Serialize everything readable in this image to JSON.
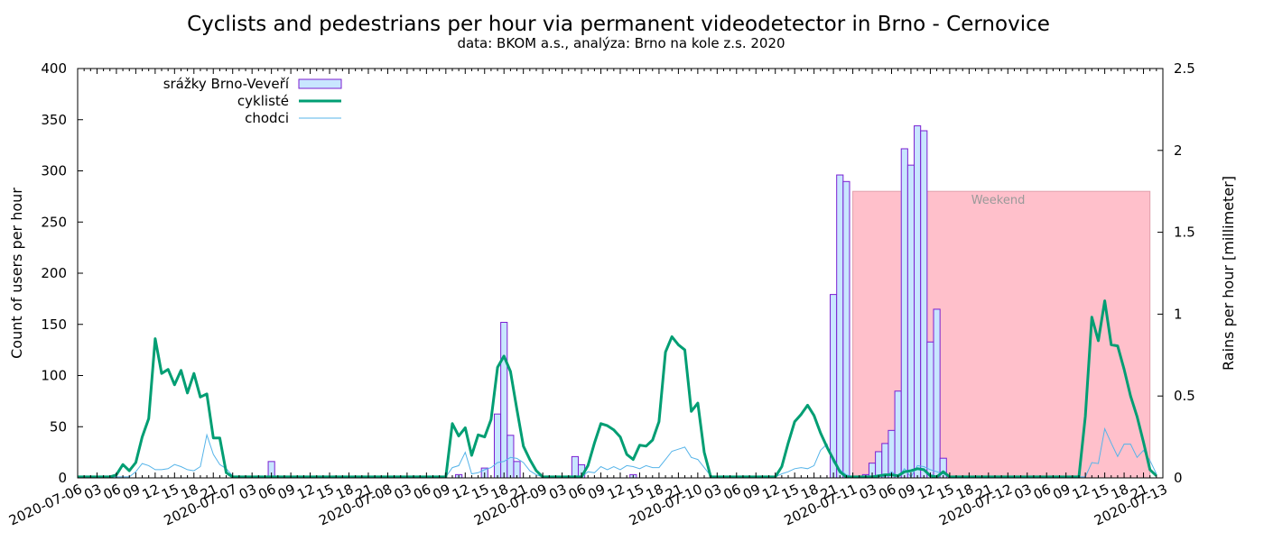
{
  "chart_data": {
    "type": "bar+line",
    "title": "Cyclists and pedestrians per hour via permanent videodetector in Brno - Cernovice",
    "subtitle": "data: BKOM a.s., analýza: Brno na kole z.s. 2020",
    "ylabel": "Count of users per hour",
    "y2label": "Rains per hour [millimeter]",
    "ylim": [
      0,
      400
    ],
    "y2lim": [
      0,
      2.5
    ],
    "yticks": [
      "0",
      "50",
      "100",
      "150",
      "200",
      "250",
      "300",
      "350",
      "400"
    ],
    "y2ticks": [
      "0",
      "0.5",
      "1",
      "1.5",
      "2",
      "2.5"
    ],
    "xlim_hours": [
      0,
      168
    ],
    "date_labels": [
      "2020-07-06",
      "2020-07-07",
      "2020-07-08",
      "2020-07-09",
      "2020-07-10",
      "2020-07-11",
      "2020-07-12",
      "2020-07-13"
    ],
    "hour_labels": [
      "03",
      "06",
      "09",
      "12",
      "15",
      "18",
      "21"
    ],
    "legend": {
      "position": "top-left"
    },
    "weekend": {
      "label": "Weekend",
      "start_hour": 120,
      "end_hour": 166,
      "level": 280,
      "color": "#ffc0cb"
    },
    "series": [
      {
        "name": "srážky Brno-Veveří",
        "axis": "y2",
        "kind": "bar",
        "color": "#c8e6ff",
        "edge": "#7b1fd1",
        "points": [
          [
            30,
            0.1
          ],
          [
            59,
            0.02
          ],
          [
            63,
            0.06
          ],
          [
            65,
            0.39
          ],
          [
            66,
            0.95
          ],
          [
            67,
            0.26
          ],
          [
            68,
            0.1
          ],
          [
            77,
            0.13
          ],
          [
            78,
            0.08
          ],
          [
            86,
            0.02
          ],
          [
            117,
            1.12
          ],
          [
            118,
            1.85
          ],
          [
            119,
            1.81
          ],
          [
            122,
            0.02
          ],
          [
            123,
            0.09
          ],
          [
            124,
            0.16
          ],
          [
            125,
            0.21
          ],
          [
            126,
            0.29
          ],
          [
            127,
            0.53
          ],
          [
            128,
            2.01
          ],
          [
            129,
            1.91
          ],
          [
            130,
            2.15
          ],
          [
            131,
            2.12
          ],
          [
            132,
            0.83
          ],
          [
            133,
            1.03
          ],
          [
            134,
            0.12
          ]
        ]
      },
      {
        "name": "cyklisté",
        "axis": "y",
        "kind": "line",
        "color": "#009e73",
        "points": [
          [
            0,
            1
          ],
          [
            5,
            1
          ],
          [
            6,
            3
          ],
          [
            7,
            13
          ],
          [
            8,
            7
          ],
          [
            9,
            15
          ],
          [
            10,
            40
          ],
          [
            11,
            58
          ],
          [
            12,
            136
          ],
          [
            13,
            102
          ],
          [
            14,
            106
          ],
          [
            15,
            91
          ],
          [
            16,
            105
          ],
          [
            17,
            83
          ],
          [
            18,
            102
          ],
          [
            19,
            79
          ],
          [
            20,
            82
          ],
          [
            21,
            39
          ],
          [
            22,
            39
          ],
          [
            23,
            5
          ],
          [
            24,
            1
          ],
          [
            57,
            1
          ],
          [
            58,
            53
          ],
          [
            59,
            41
          ],
          [
            60,
            49
          ],
          [
            61,
            22
          ],
          [
            62,
            42
          ],
          [
            63,
            40
          ],
          [
            64,
            57
          ],
          [
            65,
            108
          ],
          [
            66,
            119
          ],
          [
            67,
            104
          ],
          [
            68,
            67
          ],
          [
            69,
            31
          ],
          [
            70,
            18
          ],
          [
            71,
            7
          ],
          [
            72,
            1
          ],
          [
            78,
            1
          ],
          [
            79,
            12
          ],
          [
            80,
            34
          ],
          [
            81,
            53
          ],
          [
            82,
            51
          ],
          [
            83,
            47
          ],
          [
            84,
            40
          ],
          [
            85,
            23
          ],
          [
            86,
            18
          ],
          [
            87,
            32
          ],
          [
            88,
            31
          ],
          [
            89,
            37
          ],
          [
            90,
            55
          ],
          [
            91,
            123
          ],
          [
            92,
            138
          ],
          [
            93,
            130
          ],
          [
            94,
            125
          ],
          [
            95,
            65
          ],
          [
            96,
            73
          ],
          [
            97,
            25
          ],
          [
            98,
            1
          ],
          [
            108,
            1
          ],
          [
            109,
            11
          ],
          [
            110,
            34
          ],
          [
            111,
            55
          ],
          [
            112,
            62
          ],
          [
            113,
            71
          ],
          [
            114,
            61
          ],
          [
            115,
            44
          ],
          [
            116,
            30
          ],
          [
            117,
            18
          ],
          [
            118,
            6
          ],
          [
            119,
            1
          ],
          [
            121,
            1
          ],
          [
            123,
            1
          ],
          [
            124,
            2
          ],
          [
            125,
            3
          ],
          [
            126,
            3
          ],
          [
            127,
            2
          ],
          [
            128,
            6
          ],
          [
            129,
            7
          ],
          [
            130,
            9
          ],
          [
            131,
            8
          ],
          [
            132,
            2
          ],
          [
            133,
            1
          ],
          [
            134,
            6
          ],
          [
            135,
            1
          ],
          [
            155,
            1
          ],
          [
            156,
            60
          ],
          [
            157,
            157
          ],
          [
            158,
            134
          ],
          [
            159,
            173
          ],
          [
            160,
            130
          ],
          [
            161,
            129
          ],
          [
            162,
            106
          ],
          [
            163,
            80
          ],
          [
            164,
            60
          ],
          [
            165,
            35
          ],
          [
            166,
            8
          ],
          [
            167,
            2
          ]
        ]
      },
      {
        "name": "chodci",
        "axis": "y",
        "kind": "line",
        "color": "#56b4e9",
        "points": [
          [
            0,
            1
          ],
          [
            8,
            1
          ],
          [
            9,
            6
          ],
          [
            10,
            14
          ],
          [
            11,
            12
          ],
          [
            12,
            8
          ],
          [
            13,
            8
          ],
          [
            14,
            9
          ],
          [
            15,
            13
          ],
          [
            16,
            11
          ],
          [
            17,
            8
          ],
          [
            18,
            7
          ],
          [
            19,
            11
          ],
          [
            20,
            42
          ],
          [
            21,
            23
          ],
          [
            22,
            13
          ],
          [
            23,
            9
          ],
          [
            24,
            2
          ],
          [
            25,
            1
          ],
          [
            57,
            1
          ],
          [
            58,
            10
          ],
          [
            59,
            12
          ],
          [
            60,
            25
          ],
          [
            61,
            4
          ],
          [
            62,
            5
          ],
          [
            63,
            8
          ],
          [
            64,
            10
          ],
          [
            65,
            15
          ],
          [
            66,
            16
          ],
          [
            67,
            20
          ],
          [
            68,
            19
          ],
          [
            69,
            15
          ],
          [
            70,
            7
          ],
          [
            71,
            3
          ],
          [
            72,
            1
          ],
          [
            78,
            1
          ],
          [
            79,
            6
          ],
          [
            80,
            5
          ],
          [
            81,
            11
          ],
          [
            82,
            8
          ],
          [
            83,
            11
          ],
          [
            84,
            8
          ],
          [
            85,
            12
          ],
          [
            86,
            11
          ],
          [
            87,
            9
          ],
          [
            88,
            12
          ],
          [
            89,
            10
          ],
          [
            90,
            10
          ],
          [
            91,
            18
          ],
          [
            92,
            26
          ],
          [
            93,
            28
          ],
          [
            94,
            30
          ],
          [
            95,
            20
          ],
          [
            96,
            18
          ],
          [
            97,
            10
          ],
          [
            98,
            2
          ],
          [
            108,
            1
          ],
          [
            109,
            4
          ],
          [
            110,
            6
          ],
          [
            111,
            9
          ],
          [
            112,
            10
          ],
          [
            113,
            9
          ],
          [
            114,
            12
          ],
          [
            115,
            27
          ],
          [
            116,
            33
          ],
          [
            117,
            15
          ],
          [
            118,
            8
          ],
          [
            119,
            3
          ],
          [
            121,
            1
          ],
          [
            124,
            3
          ],
          [
            126,
            6
          ],
          [
            128,
            9
          ],
          [
            130,
            12
          ],
          [
            131,
            11
          ],
          [
            132,
            8
          ],
          [
            133,
            6
          ],
          [
            134,
            4
          ],
          [
            135,
            1
          ],
          [
            156,
            1
          ],
          [
            157,
            15
          ],
          [
            158,
            14
          ],
          [
            159,
            48
          ],
          [
            160,
            34
          ],
          [
            161,
            21
          ],
          [
            162,
            33
          ],
          [
            163,
            33
          ],
          [
            164,
            20
          ],
          [
            165,
            27
          ],
          [
            166,
            17
          ],
          [
            167,
            4
          ]
        ]
      }
    ]
  }
}
